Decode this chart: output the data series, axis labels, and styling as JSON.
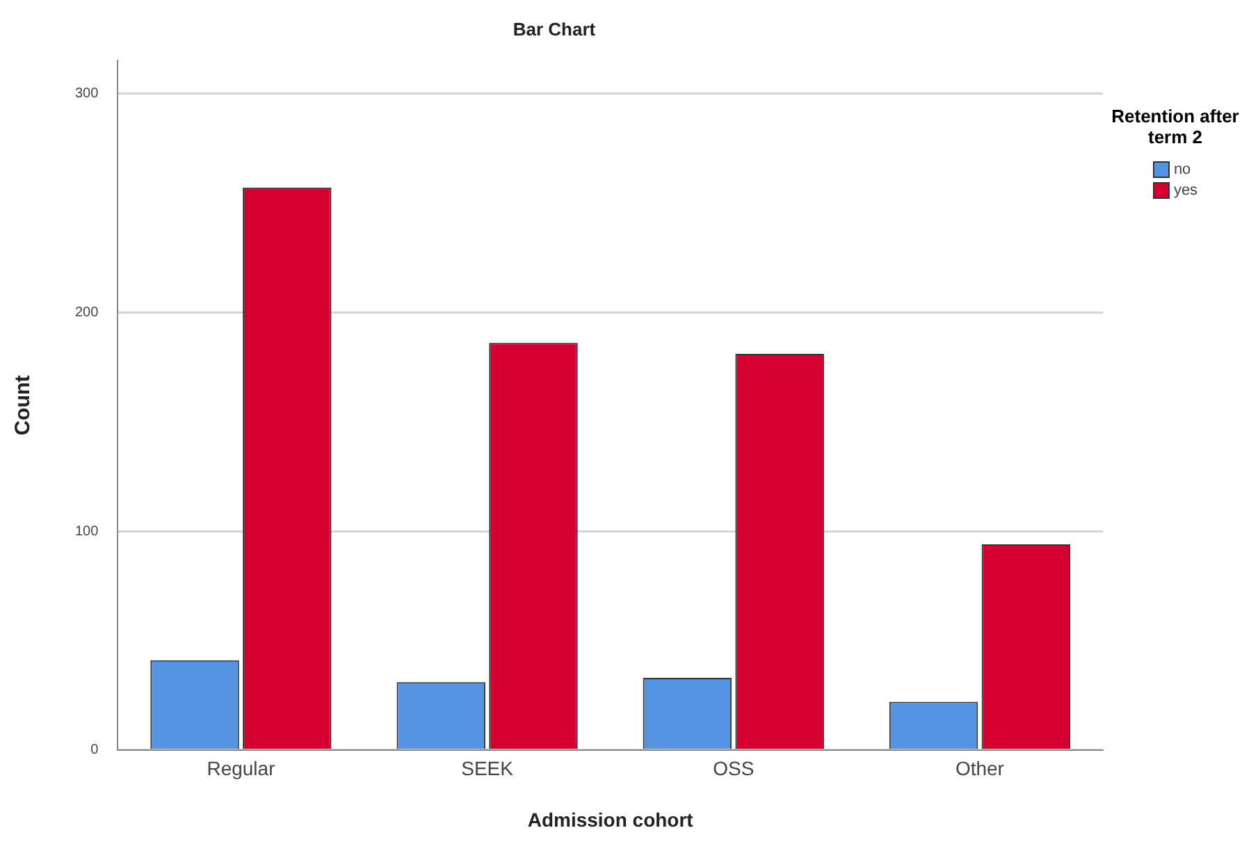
{
  "chart_data": {
    "type": "bar",
    "title": "Bar Chart",
    "xlabel": "Admission cohort",
    "ylabel": "Count",
    "legend_title": "Retention after term 2",
    "categories": [
      "Regular",
      "SEEK",
      "OSS",
      "Other"
    ],
    "series": [
      {
        "name": "no",
        "color": "#5494e3",
        "values": [
          41,
          31,
          33,
          22
        ]
      },
      {
        "name": "yes",
        "color": "#d50030",
        "values": [
          257,
          186,
          181,
          94
        ]
      }
    ],
    "ylim": [
      0,
      315
    ],
    "yticks": [
      0,
      100,
      200,
      300
    ],
    "grid": "y",
    "legend": "top right"
  }
}
